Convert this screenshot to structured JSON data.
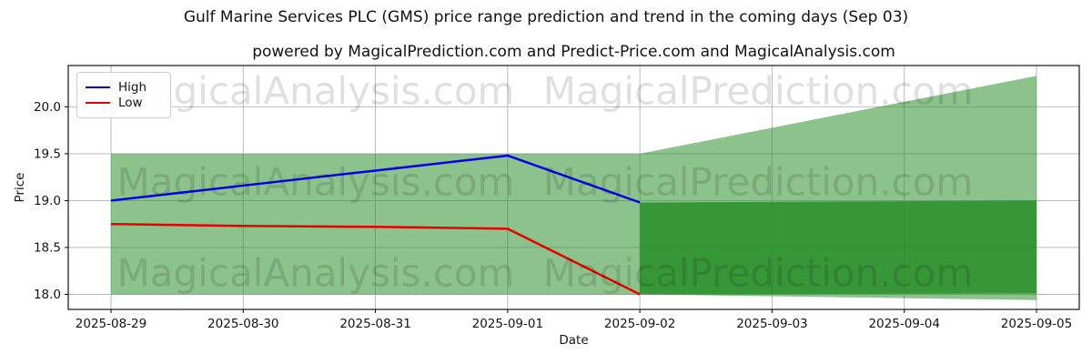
{
  "figure": {
    "title": "Gulf Marine Services PLC (GMS) price range prediction and trend in the coming days (Sep 03)",
    "subtitle": "powered by MagicalPrediction.com and Predict-Price.com and MagicalAnalysis.com"
  },
  "watermarks": {
    "left_text": "MagicalAnalysis.com",
    "right_text": "MagicalPrediction.com"
  },
  "legend": {
    "position": "upper left",
    "entries": [
      {
        "label": "High",
        "color": "#0000e6"
      },
      {
        "label": "Low",
        "color": "#e60000"
      }
    ]
  },
  "axes": {
    "xlabel": "Date",
    "ylabel": "Price"
  },
  "chart_data": {
    "type": "line",
    "title": "Gulf Marine Services PLC (GMS) price range prediction and trend in the coming days (Sep 03)",
    "subtitle": "powered by MagicalPrediction.com and Predict-Price.com and MagicalAnalysis.com",
    "xlabel": "Date",
    "ylabel": "Price",
    "grid": true,
    "legend_position": "upper left",
    "categories": [
      "2025-08-29",
      "2025-08-30",
      "2025-08-31",
      "2025-09-01",
      "2025-09-02",
      "2025-09-03",
      "2025-09-04",
      "2025-09-05"
    ],
    "yticks": [
      18.0,
      18.5,
      19.0,
      19.5,
      20.0
    ],
    "ylim": [
      17.84,
      20.44
    ],
    "series": [
      {
        "name": "High",
        "color": "#0000e6",
        "x": [
          "2025-08-29",
          "2025-08-30",
          "2025-08-31",
          "2025-09-01",
          "2025-09-02"
        ],
        "values": [
          19.0,
          19.16,
          19.32,
          19.48,
          18.98
        ]
      },
      {
        "name": "Low",
        "color": "#e60000",
        "x": [
          "2025-08-29",
          "2025-08-30",
          "2025-08-31",
          "2025-09-01",
          "2025-09-02"
        ],
        "values": [
          18.75,
          18.73,
          18.72,
          18.7,
          18.0
        ]
      }
    ],
    "bands": [
      {
        "name": "observed-range",
        "fill": "#228B22",
        "opacity": 0.52,
        "x": [
          "2025-08-29",
          "2025-09-02"
        ],
        "top": [
          19.5,
          19.5
        ],
        "bottom": [
          18.0,
          18.0
        ]
      },
      {
        "name": "forecast-fan",
        "fill": "#228B22",
        "opacity": 0.52,
        "x": [
          "2025-09-02",
          "2025-09-05"
        ],
        "top": [
          19.5,
          20.33
        ],
        "bottom": [
          18.0,
          17.94
        ]
      },
      {
        "name": "forecast-range",
        "fill": "#228B22",
        "opacity": 0.8,
        "x": [
          "2025-09-02",
          "2025-09-05"
        ],
        "top": [
          18.98,
          19.0
        ],
        "bottom": [
          18.0,
          18.01
        ]
      }
    ]
  }
}
